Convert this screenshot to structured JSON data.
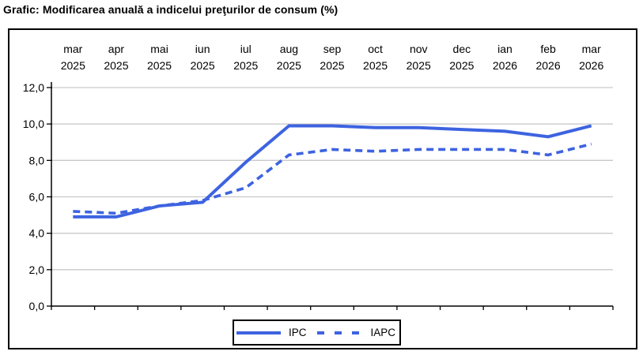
{
  "page_title": "Grafic: Modificarea anuală a indicelui preţurilor de consum (%)",
  "colors": {
    "series_blue": "#3d63e0",
    "gridline": "#c9c9c9",
    "axis": "#000000"
  },
  "chart_data": {
    "type": "line",
    "title": "Grafic: Modificarea anuală a indicelui preţurilor de consum (%)",
    "x_categories": [
      {
        "month": "mar",
        "year": "2025"
      },
      {
        "month": "apr",
        "year": "2025"
      },
      {
        "month": "mai",
        "year": "2025"
      },
      {
        "month": "iun",
        "year": "2025"
      },
      {
        "month": "iul",
        "year": "2025"
      },
      {
        "month": "aug",
        "year": "2025"
      },
      {
        "month": "sep",
        "year": "2025"
      },
      {
        "month": "oct",
        "year": "2025"
      },
      {
        "month": "nov",
        "year": "2025"
      },
      {
        "month": "dec",
        "year": "2025"
      },
      {
        "month": "ian",
        "year": "2026"
      },
      {
        "month": "feb",
        "year": "2026"
      },
      {
        "month": "mar",
        "year": "2026"
      }
    ],
    "series": [
      {
        "name": "IPC",
        "style": "solid",
        "color": "#3d63e0",
        "values": [
          4.9,
          4.9,
          5.5,
          5.7,
          7.9,
          9.9,
          9.9,
          9.8,
          9.8,
          9.7,
          9.6,
          9.3,
          9.9
        ]
      },
      {
        "name": "IAPC",
        "style": "dashed",
        "color": "#3d63e0",
        "values": [
          5.2,
          5.1,
          5.5,
          5.8,
          6.5,
          8.3,
          8.6,
          8.5,
          8.6,
          8.6,
          8.6,
          8.3,
          8.9
        ]
      }
    ],
    "ylim": [
      0,
      12
    ],
    "ytick_step": 2,
    "ytick_labels": [
      "0,0",
      "2,0",
      "4,0",
      "6,0",
      "8,0",
      "10,0",
      "12,0"
    ],
    "grid": true,
    "legend_position": "bottom-center",
    "legend": [
      "IPC",
      "IAPC"
    ]
  }
}
